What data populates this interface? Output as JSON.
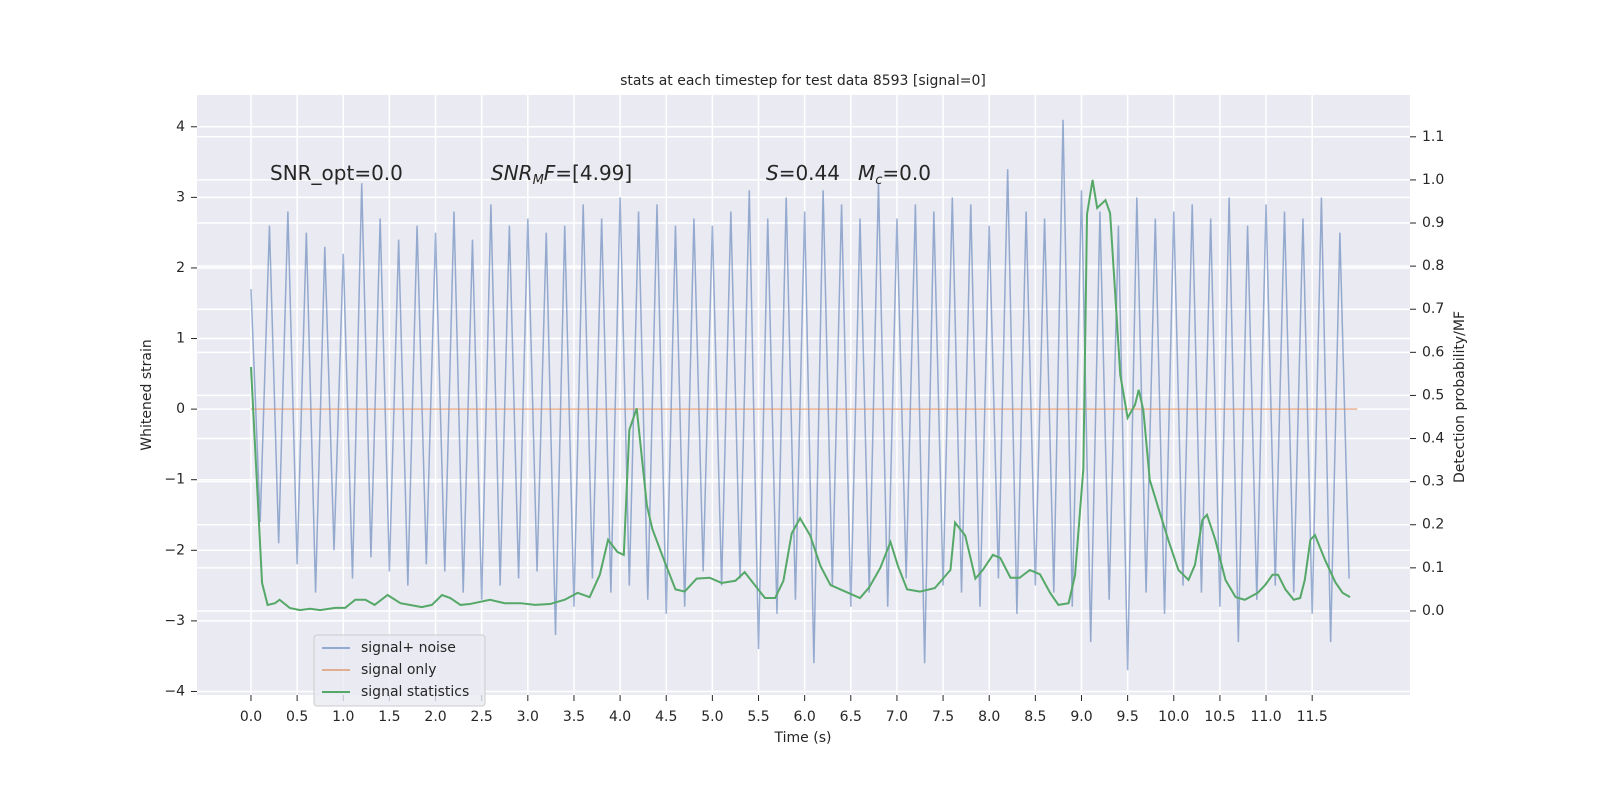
{
  "chart_data": {
    "type": "line",
    "title": "stats at each timestep for test data 8593 [signal=0]",
    "xlabel": "Time (s)",
    "ylabel": "Whitened strain",
    "y2label": "Detection probability/MF",
    "annotations": [
      [
        "SNR_opt=0.0"
      ],
      [
        "SNR",
        "M",
        "F",
        "=[4.99]"
      ],
      [
        "S",
        "=0.44"
      ],
      [
        "M",
        "c",
        "=0.0"
      ]
    ],
    "xlim": [
      -0.585,
      12.56
    ],
    "ylim": [
      -4.05,
      4.45
    ],
    "y2lim": [
      -0.195,
      1.197
    ],
    "xticks": [
      {
        "value": 0,
        "label": "0.0"
      },
      0.5,
      {
        "value": 1,
        "label": "1.0"
      },
      1.5,
      {
        "value": 2,
        "label": "2.0"
      },
      2.5,
      {
        "value": 3,
        "label": "3.0"
      },
      3.5,
      {
        "value": 4,
        "label": "4.0"
      },
      4.5,
      {
        "value": 5,
        "label": "5.0"
      },
      5.5,
      {
        "value": 6,
        "label": "6.0"
      },
      6.5,
      {
        "value": 7,
        "label": "7.0"
      },
      7.5,
      {
        "value": 8,
        "label": "8.0"
      },
      8.5,
      {
        "value": 9,
        "label": "9.0"
      },
      9.5,
      {
        "value": 10,
        "label": "10.0"
      },
      10.5,
      {
        "value": 11,
        "label": "11.0"
      },
      11.5
    ],
    "yticks": [
      {
        "value": -4,
        "label": "−4"
      },
      {
        "value": -3,
        "label": "−3"
      },
      {
        "value": -2,
        "label": "−2"
      },
      {
        "value": -1,
        "label": "−1"
      },
      0,
      1,
      2,
      3,
      4
    ],
    "y2ticks": [
      {
        "value": 0,
        "label": "0.0"
      },
      0.1,
      0.2,
      0.3,
      0.4,
      0.5,
      0.6,
      0.7,
      0.8,
      0.9,
      {
        "value": 1,
        "label": "1.0"
      },
      1.1
    ],
    "grid": true,
    "legend": "lower left",
    "series": [
      {
        "name": "signal+ noise",
        "color": "#4c72b0",
        "opacity": 0.55,
        "x": [
          0,
          0.1,
          0.2,
          0.3,
          0.4,
          0.5,
          0.6,
          0.7,
          0.8,
          0.9,
          1,
          1.1,
          1.2,
          1.3,
          1.4,
          1.5,
          1.6,
          1.7,
          1.8,
          1.9,
          2,
          2.1,
          2.2,
          2.3,
          2.4,
          2.5,
          2.6,
          2.7,
          2.8,
          2.9,
          3,
          3.1,
          3.2,
          3.3,
          3.4,
          3.5,
          3.6,
          3.7,
          3.8,
          3.9,
          4,
          4.1,
          4.2,
          4.3,
          4.4,
          4.5,
          4.6,
          4.7,
          4.8,
          4.9,
          5,
          5.1,
          5.2,
          5.3,
          5.4,
          5.5,
          5.6,
          5.7,
          5.8,
          5.9,
          6,
          6.1,
          6.2,
          6.3,
          6.4,
          6.5,
          6.6,
          6.7,
          6.8,
          6.9,
          7,
          7.1,
          7.2,
          7.3,
          7.4,
          7.5,
          7.6,
          7.7,
          7.8,
          7.9,
          8,
          8.1,
          8.2,
          8.3,
          8.4,
          8.5,
          8.6,
          8.7,
          8.8,
          8.9,
          9,
          9.1,
          9.2,
          9.3,
          9.4,
          9.5,
          9.6,
          9.7,
          9.8,
          9.9,
          10,
          10.1,
          10.2,
          10.3,
          10.4,
          10.5,
          10.6,
          10.7,
          10.8,
          10.9,
          11,
          11.1,
          11.2,
          11.3,
          11.4,
          11.5,
          11.6,
          11.7,
          11.8,
          11.9
        ],
        "values": [
          1.7,
          -1.6,
          2.6,
          -1.9,
          2.8,
          -2.2,
          2.5,
          -2.6,
          2.3,
          -2.0,
          2.2,
          -2.4,
          3.2,
          -2.1,
          2.7,
          -2.3,
          2.4,
          -2.5,
          2.6,
          -2.2,
          2.5,
          -2.3,
          2.8,
          -2.6,
          2.4,
          -2.7,
          2.9,
          -2.5,
          2.6,
          -2.4,
          2.7,
          -2.3,
          2.5,
          -3.2,
          2.6,
          -2.8,
          2.9,
          -2.4,
          2.7,
          -2.6,
          3.0,
          -2.5,
          2.8,
          -2.7,
          2.9,
          -2.9,
          2.6,
          -2.8,
          2.7,
          -2.3,
          2.6,
          -2.5,
          2.8,
          -2.4,
          3.1,
          -3.4,
          2.7,
          -2.9,
          3.0,
          -2.7,
          2.8,
          -3.6,
          3.1,
          -2.5,
          2.9,
          -2.8,
          2.7,
          -2.6,
          3.2,
          -2.8,
          2.7,
          -2.4,
          2.9,
          -3.6,
          2.8,
          -2.5,
          3.0,
          -2.6,
          2.9,
          -2.8,
          2.6,
          -2.4,
          3.4,
          -2.9,
          2.8,
          -2.5,
          2.7,
          -2.6,
          4.1,
          -2.8,
          3.1,
          -3.3,
          2.8,
          -2.7,
          2.6,
          -3.7,
          3.0,
          -2.6,
          2.7,
          -2.9,
          2.8,
          -2.5,
          2.9,
          -2.6,
          2.7,
          -2.8,
          3.0,
          -3.3,
          2.6,
          -2.7,
          2.9,
          -2.5,
          2.8,
          -2.6,
          2.7,
          -2.9,
          3.0,
          -3.3,
          2.5,
          -2.4
        ]
      },
      {
        "name": "signal only",
        "color": "#dd8452",
        "opacity": 0.6,
        "x": [
          0,
          11.99
        ],
        "values": [
          0,
          0
        ]
      },
      {
        "name": "signal statistics",
        "color": "#55a868",
        "opacity": 1,
        "axis": "y2",
        "x": [
          0,
          0.12,
          0.18,
          0.26,
          0.31,
          0.42,
          0.53,
          0.64,
          0.75,
          0.91,
          1.02,
          1.13,
          1.24,
          1.34,
          1.48,
          1.62,
          1.72,
          1.85,
          1.96,
          2.07,
          2.16,
          2.27,
          2.37,
          2.59,
          2.75,
          2.92,
          3.08,
          3.24,
          3.4,
          3.54,
          3.67,
          3.78,
          3.87,
          3.97,
          4.04,
          4.1,
          4.18,
          4.29,
          4.35,
          4.49,
          4.6,
          4.7,
          4.83,
          4.97,
          5.1,
          5.25,
          5.35,
          5.46,
          5.57,
          5.68,
          5.77,
          5.86,
          5.95,
          6.06,
          6.17,
          6.28,
          6.44,
          6.6,
          6.7,
          6.82,
          6.93,
          7.01,
          7.11,
          7.25,
          7.41,
          7.58,
          7.63,
          7.74,
          7.85,
          7.93,
          8.04,
          8.12,
          8.23,
          8.33,
          8.44,
          8.55,
          8.66,
          8.75,
          8.86,
          8.93,
          9.02,
          9.06,
          9.12,
          9.17,
          9.26,
          9.31,
          9.37,
          9.42,
          9.5,
          9.58,
          9.62,
          9.67,
          9.74,
          9.84,
          9.94,
          10.05,
          10.16,
          10.23,
          10.31,
          10.36,
          10.45,
          10.56,
          10.67,
          10.77,
          10.91,
          10.99,
          11.07,
          11.13,
          11.21,
          11.3,
          11.37,
          11.42,
          11.48,
          11.53,
          11.64,
          11.75,
          11.83,
          11.91
        ],
        "values": [
          0.566,
          0.065,
          0.014,
          0.018,
          0.026,
          0.007,
          0.002,
          0.005,
          0.002,
          0.007,
          0.007,
          0.026,
          0.026,
          0.014,
          0.037,
          0.018,
          0.014,
          0.009,
          0.014,
          0.037,
          0.03,
          0.014,
          0.016,
          0.026,
          0.018,
          0.018,
          0.014,
          0.016,
          0.026,
          0.042,
          0.032,
          0.084,
          0.165,
          0.137,
          0.13,
          0.42,
          0.47,
          0.245,
          0.19,
          0.11,
          0.05,
          0.045,
          0.075,
          0.077,
          0.065,
          0.07,
          0.09,
          0.06,
          0.03,
          0.03,
          0.07,
          0.18,
          0.215,
          0.175,
          0.105,
          0.06,
          0.045,
          0.03,
          0.055,
          0.1,
          0.16,
          0.105,
          0.05,
          0.045,
          0.053,
          0.095,
          0.205,
          0.175,
          0.075,
          0.095,
          0.13,
          0.123,
          0.077,
          0.077,
          0.095,
          0.085,
          0.042,
          0.014,
          0.018,
          0.083,
          0.33,
          0.92,
          1.0,
          0.935,
          0.953,
          0.923,
          0.72,
          0.548,
          0.448,
          0.478,
          0.513,
          0.466,
          0.304,
          0.234,
          0.165,
          0.095,
          0.072,
          0.107,
          0.211,
          0.223,
          0.165,
          0.072,
          0.032,
          0.026,
          0.042,
          0.06,
          0.084,
          0.084,
          0.05,
          0.026,
          0.03,
          0.072,
          0.165,
          0.176,
          0.118,
          0.067,
          0.042,
          0.032
        ]
      }
    ]
  }
}
